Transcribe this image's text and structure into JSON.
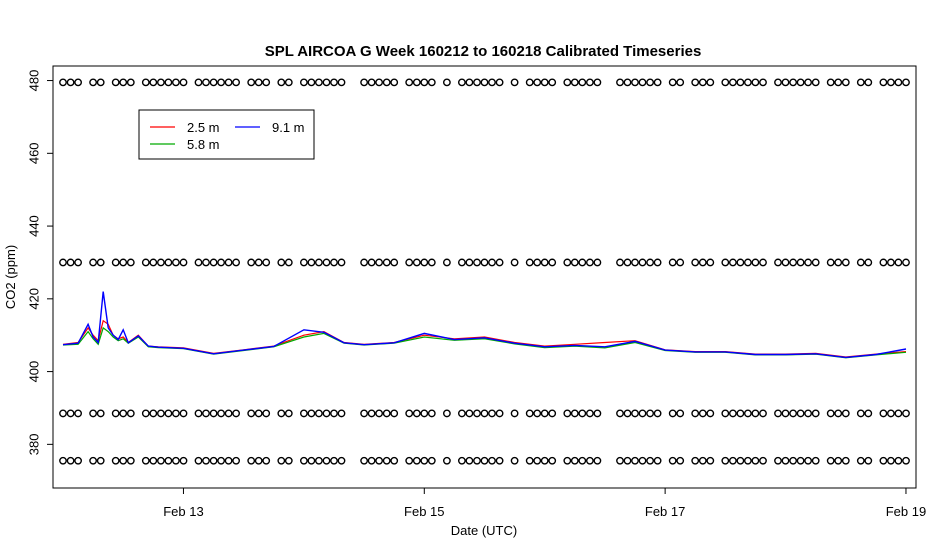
{
  "chart_data": {
    "type": "line",
    "title": "SPL AIRCOA G  Week 160212 to 160218  Calibrated Timeseries",
    "xlabel": "Date (UTC)",
    "ylabel": "CO2 (ppm)",
    "x_ticks": [
      "Feb 13",
      "Feb 15",
      "Feb 17",
      "Feb 19"
    ],
    "y_ticks": [
      380,
      400,
      420,
      440,
      460,
      480
    ],
    "xlim": [
      "2016-02-11T22:00",
      "2016-02-19T02:00"
    ],
    "ylim": [
      368,
      484
    ],
    "legend_position": "top-left",
    "grid": false,
    "series": [
      {
        "name": "2.5 m",
        "color": "#ff0000",
        "x": [
          "2016-02-12T00:00",
          "2016-02-12T03:00",
          "2016-02-12T05:00",
          "2016-02-12T06:00",
          "2016-02-12T07:00",
          "2016-02-12T08:00",
          "2016-02-12T09:00",
          "2016-02-12T10:00",
          "2016-02-12T11:00",
          "2016-02-12T12:00",
          "2016-02-12T13:00",
          "2016-02-12T15:00",
          "2016-02-12T17:00",
          "2016-02-12T19:00",
          "2016-02-13T00:00",
          "2016-02-13T06:00",
          "2016-02-13T12:00",
          "2016-02-13T18:00",
          "2016-02-14T00:00",
          "2016-02-14T04:00",
          "2016-02-14T08:00",
          "2016-02-14T12:00",
          "2016-02-14T18:00",
          "2016-02-15T00:00",
          "2016-02-15T06:00",
          "2016-02-15T12:00",
          "2016-02-15T18:00",
          "2016-02-16T00:00",
          "2016-02-16T06:00",
          "2016-02-16T12:00",
          "2016-02-16T18:00",
          "2016-02-17T00:00",
          "2016-02-17T06:00",
          "2016-02-17T12:00",
          "2016-02-17T18:00",
          "2016-02-18T00:00",
          "2016-02-18T06:00",
          "2016-02-18T12:00",
          "2016-02-18T18:00",
          "2016-02-19T00:00"
        ],
        "values": [
          407.5,
          408,
          412,
          410,
          408.5,
          414,
          413,
          410,
          409,
          409.5,
          408,
          410,
          407,
          406.8,
          406.5,
          405,
          406,
          407,
          410,
          411,
          408,
          407.5,
          408,
          410,
          409,
          409.5,
          408,
          407,
          407.5,
          408,
          408.5,
          406,
          405.5,
          405.5,
          404.8,
          404.8,
          405,
          404,
          404.8,
          405.5
        ]
      },
      {
        "name": "5.8 m",
        "color": "#00aa00",
        "x": [
          "2016-02-12T00:00",
          "2016-02-12T03:00",
          "2016-02-12T05:00",
          "2016-02-12T06:00",
          "2016-02-12T07:00",
          "2016-02-12T08:00",
          "2016-02-12T09:00",
          "2016-02-12T10:00",
          "2016-02-12T11:00",
          "2016-02-12T12:00",
          "2016-02-12T13:00",
          "2016-02-12T15:00",
          "2016-02-12T17:00",
          "2016-02-12T19:00",
          "2016-02-13T00:00",
          "2016-02-13T06:00",
          "2016-02-13T12:00",
          "2016-02-13T18:00",
          "2016-02-14T00:00",
          "2016-02-14T04:00",
          "2016-02-14T08:00",
          "2016-02-14T12:00",
          "2016-02-14T18:00",
          "2016-02-15T00:00",
          "2016-02-15T06:00",
          "2016-02-15T12:00",
          "2016-02-15T18:00",
          "2016-02-16T00:00",
          "2016-02-16T06:00",
          "2016-02-16T12:00",
          "2016-02-16T18:00",
          "2016-02-17T00:00",
          "2016-02-17T06:00",
          "2016-02-17T12:00",
          "2016-02-17T18:00",
          "2016-02-18T00:00",
          "2016-02-18T06:00",
          "2016-02-18T12:00",
          "2016-02-18T18:00",
          "2016-02-19T00:00"
        ],
        "values": [
          407.3,
          407.5,
          411,
          409,
          407.5,
          412,
          411,
          409.5,
          408.5,
          409,
          407.8,
          409.5,
          406.8,
          406.6,
          406.3,
          404.8,
          405.8,
          406.8,
          409.5,
          410.5,
          407.8,
          407.3,
          407.8,
          409.5,
          408.6,
          409,
          407.6,
          406.6,
          407,
          406.5,
          408,
          405.8,
          405.3,
          405.3,
          404.6,
          404.6,
          404.8,
          403.8,
          404.6,
          405.3
        ]
      },
      {
        "name": "9.1 m",
        "color": "#0000ff",
        "x": [
          "2016-02-12T00:00",
          "2016-02-12T03:00",
          "2016-02-12T05:00",
          "2016-02-12T06:00",
          "2016-02-12T07:00",
          "2016-02-12T08:00",
          "2016-02-12T09:00",
          "2016-02-12T10:00",
          "2016-02-12T11:00",
          "2016-02-12T12:00",
          "2016-02-12T13:00",
          "2016-02-12T15:00",
          "2016-02-12T17:00",
          "2016-02-12T19:00",
          "2016-02-13T00:00",
          "2016-02-13T06:00",
          "2016-02-13T12:00",
          "2016-02-13T18:00",
          "2016-02-14T00:00",
          "2016-02-14T04:00",
          "2016-02-14T08:00",
          "2016-02-14T12:00",
          "2016-02-14T18:00",
          "2016-02-15T00:00",
          "2016-02-15T06:00",
          "2016-02-15T12:00",
          "2016-02-15T18:00",
          "2016-02-16T00:00",
          "2016-02-16T06:00",
          "2016-02-16T12:00",
          "2016-02-16T18:00",
          "2016-02-17T00:00",
          "2016-02-17T06:00",
          "2016-02-17T12:00",
          "2016-02-17T18:00",
          "2016-02-18T00:00",
          "2016-02-18T06:00",
          "2016-02-18T12:00",
          "2016-02-18T18:00",
          "2016-02-19T00:00"
        ],
        "values": [
          407.4,
          407.8,
          413,
          409.5,
          408,
          422,
          412,
          410,
          408.8,
          411.5,
          407.9,
          409.8,
          407,
          406.7,
          406.4,
          404.9,
          405.9,
          406.9,
          411.5,
          410.8,
          407.9,
          407.4,
          407.9,
          410.5,
          408.8,
          409.3,
          407.8,
          406.8,
          407.2,
          406.8,
          408.3,
          405.9,
          405.4,
          405.4,
          404.7,
          404.7,
          404.9,
          403.9,
          404.7,
          406.2
        ]
      }
    ],
    "reference_markers": {
      "symbol": "o",
      "levels": [
        479.5,
        430,
        388.5,
        375.5
      ]
    }
  }
}
